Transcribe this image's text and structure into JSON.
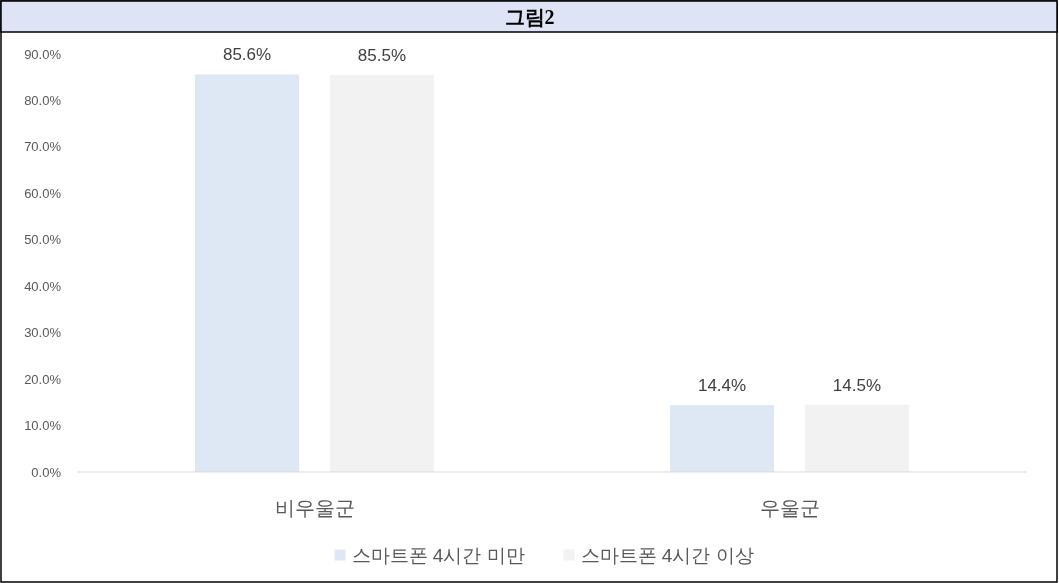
{
  "chart_data": {
    "type": "bar",
    "title": "그림2",
    "categories": [
      "비우울군",
      "우울군"
    ],
    "series": [
      {
        "name": "스마트폰 4시간 미만",
        "color": "#dde8f4",
        "values": [
          85.6,
          14.4
        ],
        "value_labels": [
          "85.6%",
          "14.4%"
        ]
      },
      {
        "name": "스마트폰 4시간 이상",
        "color": "#f2f2f2",
        "values": [
          85.5,
          14.5
        ],
        "value_labels": [
          "85.5%",
          "14.5%"
        ]
      }
    ],
    "ylim": [
      0,
      90
    ],
    "yticks": [
      {
        "value": 0,
        "label": "0.0%"
      },
      {
        "value": 10,
        "label": "10.0%"
      },
      {
        "value": 20,
        "label": "20.0%"
      },
      {
        "value": 30,
        "label": "30.0%"
      },
      {
        "value": 40,
        "label": "40.0%"
      },
      {
        "value": 50,
        "label": "50.0%"
      },
      {
        "value": 60,
        "label": "60.0%"
      },
      {
        "value": 70,
        "label": "70.0%"
      },
      {
        "value": 80,
        "label": "80.0%"
      },
      {
        "value": 90,
        "label": "90.0%"
      }
    ],
    "legend": "bottom"
  }
}
